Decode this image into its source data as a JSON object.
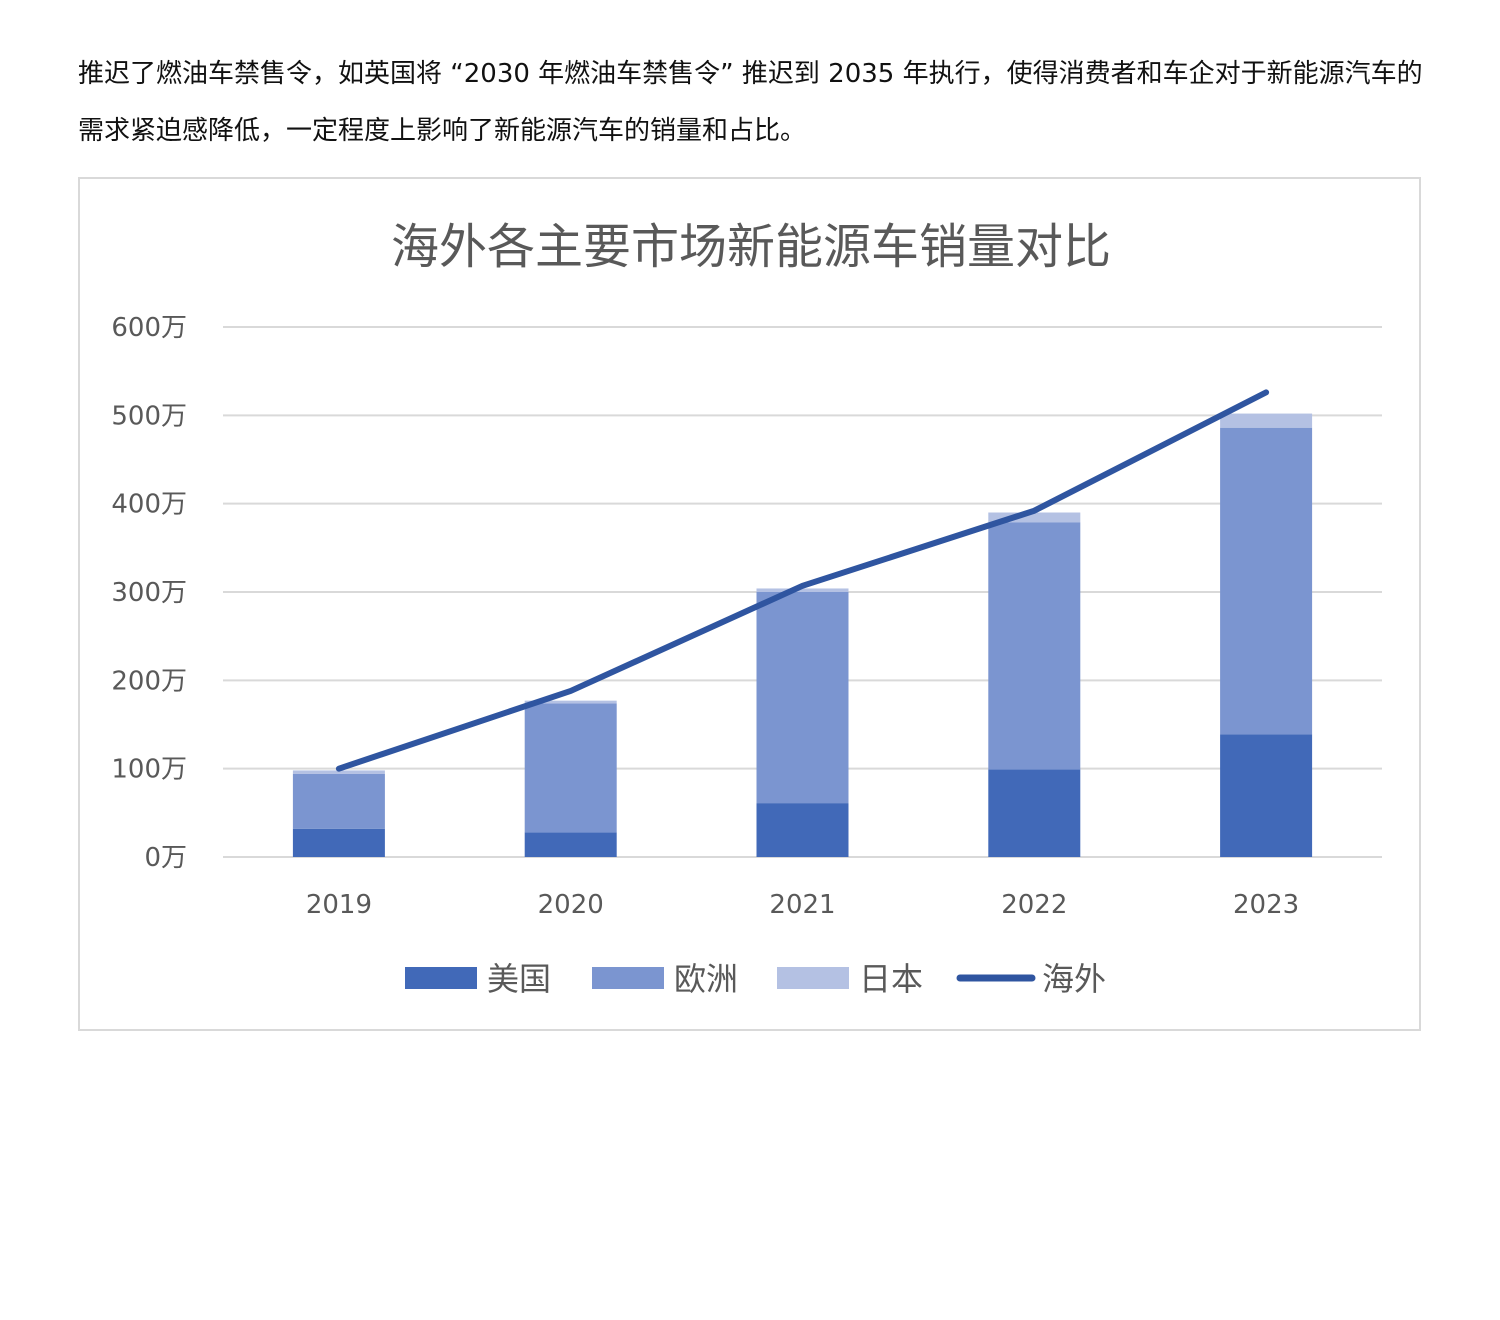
{
  "document": {
    "paragraph": "推迟了燃油车禁售令，如英国将 “2030 年燃油车禁售令” 推迟到 2035 年执行，使得消费者和车企对于新能源汽车的需求紧迫感降低，一定程度上影响了新能源汽车的销量和占比。"
  },
  "chart_data": {
    "type": "bar",
    "stacked": true,
    "title": "海外各主要市场新能源车销量对比",
    "xlabel": "",
    "ylabel": "",
    "categories": [
      "2019",
      "2020",
      "2021",
      "2022",
      "2023"
    ],
    "ylim": [
      0,
      600
    ],
    "yticks": [
      0,
      100,
      200,
      300,
      400,
      500,
      600
    ],
    "ytick_labels": [
      "0万",
      "100万",
      "200万",
      "300万",
      "400万",
      "500万",
      "600万"
    ],
    "grid": true,
    "legend_position": "bottom",
    "series": [
      {
        "name": "美国",
        "type": "bar",
        "color": "#4169b8",
        "values": [
          32,
          28,
          61,
          99,
          139
        ]
      },
      {
        "name": "欧洲",
        "type": "bar",
        "color": "#7b95d0",
        "values": [
          62,
          146,
          239,
          280,
          347
        ]
      },
      {
        "name": "日本",
        "type": "bar",
        "color": "#b4c1e3",
        "values": [
          4,
          3,
          4,
          11,
          16
        ]
      },
      {
        "name": "海外",
        "type": "line",
        "color": "#2f55a0",
        "values": [
          100,
          188,
          307,
          392,
          526
        ]
      }
    ]
  }
}
